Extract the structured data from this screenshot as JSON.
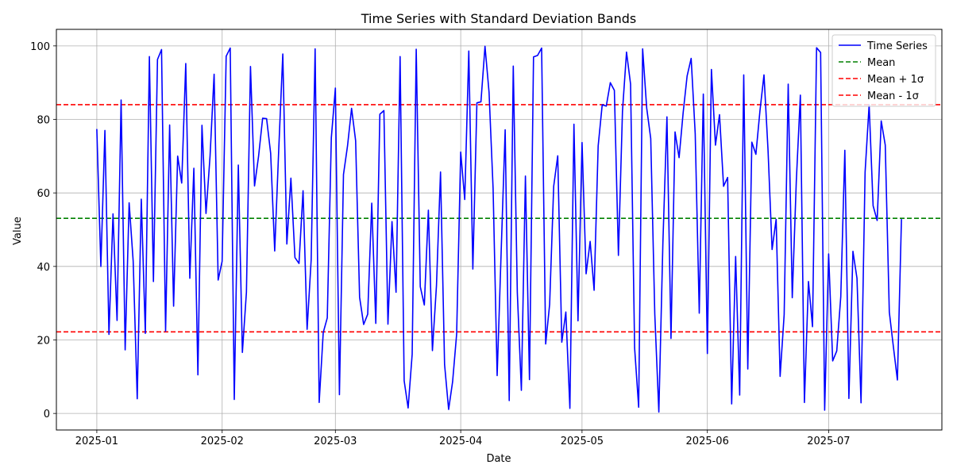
{
  "chart_data": {
    "type": "line",
    "title": "Time Series with Standard Deviation Bands",
    "xlabel": "Date",
    "ylabel": "Value",
    "x_start": "2025-01-01",
    "x_step_days": 1,
    "x_ticks": [
      "2025-01",
      "2025-02",
      "2025-03",
      "2025-04",
      "2025-05",
      "2025-06",
      "2025-07"
    ],
    "xlim": [
      "2024-12-22",
      "2025-07-29"
    ],
    "y_ticks": [
      0,
      20,
      40,
      60,
      80,
      100
    ],
    "ylim": [
      -4.5,
      104.5
    ],
    "grid": true,
    "legend_position": "top-right",
    "colors": {
      "series": "#0000ff",
      "mean": "#008000",
      "band": "#ff0000",
      "grid": "#b0b0b0"
    },
    "series": [
      {
        "name": "Time Series",
        "values": [
          77.4,
          40.0,
          77.0,
          21.5,
          54.3,
          25.3,
          85.3,
          17.3,
          57.3,
          41.4,
          4.0,
          58.3,
          21.8,
          97.1,
          35.9,
          96.3,
          99.0,
          22.4,
          78.5,
          29.2,
          70.0,
          62.7,
          95.2,
          36.8,
          66.7,
          10.5,
          78.4,
          54.4,
          70.0,
          92.3,
          36.3,
          41.4,
          97.2,
          99.4,
          3.8,
          67.6,
          16.6,
          33.0,
          94.4,
          61.9,
          70.0,
          80.3,
          80.2,
          70.8,
          44.2,
          71.9,
          97.8,
          46.1,
          64.0,
          42.4,
          40.8,
          60.6,
          22.9,
          41.7,
          99.2,
          3.0,
          22.0,
          26.0,
          75.0,
          88.5,
          5.1,
          65.0,
          72.8,
          83.0,
          74.2,
          31.6,
          24.2,
          27.0,
          57.2,
          24.5,
          81.4,
          82.4,
          24.3,
          52.2,
          33.0,
          97.1,
          8.9,
          1.5,
          16.1,
          99.1,
          34.5,
          29.5,
          55.3,
          17.1,
          34.8,
          65.7,
          13.3,
          1.1,
          8.6,
          21.6,
          71.1,
          58.2,
          98.6,
          39.3,
          84.5,
          84.8,
          99.9,
          87.4,
          61.2,
          10.3,
          43.6,
          77.2,
          3.5,
          94.5,
          32.9,
          6.3,
          64.6,
          9.2,
          97.0,
          97.4,
          99.4,
          18.9,
          29.7,
          61.8,
          70.1,
          19.4,
          27.6,
          1.4,
          78.7,
          25.2,
          73.7,
          38.0,
          46.8,
          33.5,
          72.8,
          84.0,
          83.6,
          90.0,
          87.9,
          43.0,
          82.2,
          98.3,
          89.6,
          17.8,
          1.7,
          99.2,
          83.1,
          74.8,
          27.0,
          0.4,
          46.4,
          80.7,
          20.4,
          76.6,
          69.6,
          81.8,
          91.8,
          96.6,
          76.1,
          27.3,
          86.9,
          16.3,
          93.6,
          73.0,
          81.3,
          61.8,
          64.2,
          2.6,
          42.7,
          5.0,
          92.1,
          12.1,
          73.8,
          70.5,
          82.3,
          92.1,
          71.6,
          44.6,
          52.8,
          10.1,
          26.9,
          89.6,
          31.5,
          63.2,
          86.6,
          3.0,
          35.9,
          23.6,
          99.5,
          98.2,
          0.9,
          43.4,
          14.3,
          17.0,
          31.8,
          71.6,
          4.1,
          44.1,
          36.8,
          2.9,
          65.6,
          84.0,
          56.5,
          52.5,
          79.6,
          73.0,
          27.6,
          18.2,
          9.1,
          52.9
        ]
      }
    ],
    "reference_lines": [
      {
        "name": "Mean",
        "value": 53.1,
        "color": "#008000"
      },
      {
        "name": "Mean + 1σ",
        "value": 84.0,
        "color": "#ff0000"
      },
      {
        "name": "Mean - 1σ",
        "value": 22.2,
        "color": "#ff0000"
      }
    ]
  }
}
